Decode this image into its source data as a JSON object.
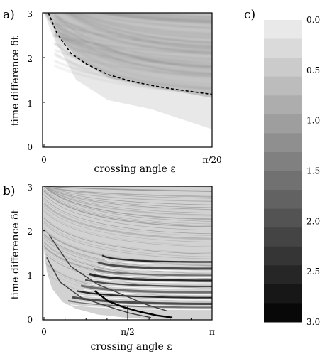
{
  "figure": {
    "panel_a_label": "a)",
    "panel_b_label": "b)",
    "panel_c_label": "c)"
  },
  "chart_data": [
    {
      "panel": "a)",
      "type": "heatmap",
      "xlabel": "crossing angle ε",
      "ylabel": "time difference δt",
      "xlim": [
        0,
        0.1571
      ],
      "ylim": [
        0,
        3
      ],
      "x_ticks": [
        0,
        0.1571
      ],
      "x_tick_labels": [
        "0",
        "π/20"
      ],
      "y_ticks": [
        0,
        1,
        2,
        3
      ],
      "y_tick_labels": [
        "0",
        "1",
        "2",
        "3"
      ],
      "colorscale_range": [
        0,
        3
      ],
      "regions": [
        {
          "description_value": 0.0,
          "boundary_x": [
            0,
            0.008,
            0.03,
            0.06,
            0.1,
            0.1571
          ],
          "boundary_y": [
            3.0,
            2.5,
            1.5,
            1.05,
            0.85,
            0.4
          ]
        },
        {
          "description_value": 0.6,
          "boundary_x": [
            0,
            0.008,
            0.03,
            0.06,
            0.1,
            0.1571
          ],
          "boundary_y": [
            3.0,
            2.7,
            2.0,
            1.55,
            1.35,
            1.1
          ]
        }
      ],
      "dashed_curve": {
        "x": [
          0.004,
          0.012,
          0.025,
          0.04,
          0.06,
          0.08,
          0.1,
          0.12,
          0.1571
        ],
        "y": [
          3.0,
          2.55,
          2.1,
          1.85,
          1.62,
          1.48,
          1.38,
          1.3,
          1.18
        ]
      }
    },
    {
      "panel": "b)",
      "type": "heatmap",
      "xlabel": "crossing angle ε",
      "ylabel": "time difference δt",
      "xlim": [
        0,
        3.1416
      ],
      "ylim": [
        0,
        3
      ],
      "x_ticks": [
        0,
        1.5708,
        3.1416
      ],
      "x_tick_labels": [
        "0",
        "π/2",
        "π"
      ],
      "y_ticks": [
        0,
        1,
        2,
        3
      ],
      "y_tick_labels": [
        "0",
        "1",
        "2",
        "3"
      ],
      "colorscale_range": [
        0,
        3
      ],
      "background_value": 0.9,
      "dark_bands_y": [
        0.28,
        0.36,
        0.5,
        0.62,
        0.75,
        0.88,
        1.0,
        1.15,
        1.3
      ],
      "dark_curves": [
        {
          "x": [
            0.05,
            0.3,
            0.7,
            1.2,
            1.6,
            2.0
          ],
          "y": [
            1.4,
            0.85,
            0.5,
            0.3,
            0.15,
            0.05
          ]
        },
        {
          "x": [
            0.1,
            0.5,
            1.0,
            1.5,
            1.9,
            2.3
          ],
          "y": [
            1.9,
            1.2,
            0.8,
            0.55,
            0.35,
            0.2
          ]
        },
        {
          "x": [
            0.95,
            1.2,
            1.5,
            1.8,
            2.1,
            2.4
          ],
          "y": [
            0.65,
            0.42,
            0.28,
            0.18,
            0.1,
            0.05
          ]
        }
      ]
    },
    {
      "panel": "c)",
      "type": "colorbar",
      "tick_labels": [
        "0.0",
        "0.5",
        "1.0",
        "1.5",
        "2.0",
        "2.5",
        "3.0"
      ],
      "tick_values": [
        0.0,
        0.5,
        1.0,
        1.5,
        2.0,
        2.5,
        3.0
      ],
      "range": [
        0,
        3
      ],
      "levels": 16,
      "orientation": "vertical",
      "light_value": 0.0,
      "dark_value": 3.0
    }
  ]
}
